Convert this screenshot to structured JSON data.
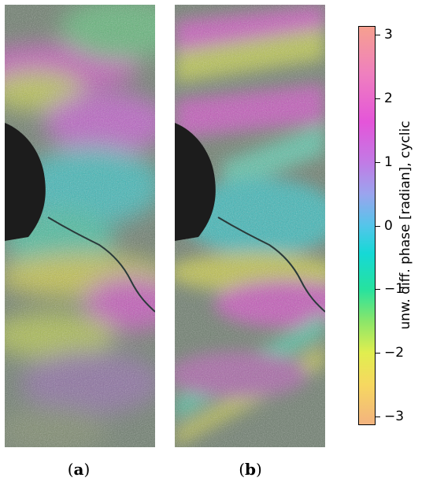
{
  "panels": [
    {
      "id": "a",
      "label_paren_open": "(",
      "label_letter": "a",
      "label_paren_close": ")"
    },
    {
      "id": "b",
      "label_paren_open": "(",
      "label_letter": "b",
      "label_paren_close": ")"
    }
  ],
  "colorbar": {
    "label": "unw. diff. phase [radian], cyclic",
    "range": [
      -3.14159,
      3.14159
    ],
    "ticks": [
      "3",
      "2",
      "1",
      "0",
      "−1",
      "−2",
      "−3"
    ],
    "tick_values": [
      3,
      2,
      1,
      0,
      -1,
      -2,
      -3
    ],
    "colors": {
      "top": "#f6a08f",
      "magenta": "#e455d9",
      "cyan": "#15d9d6",
      "green": "#26e29f",
      "yellow": "#e1ee4f",
      "bottom": "#f3b37f"
    }
  }
}
